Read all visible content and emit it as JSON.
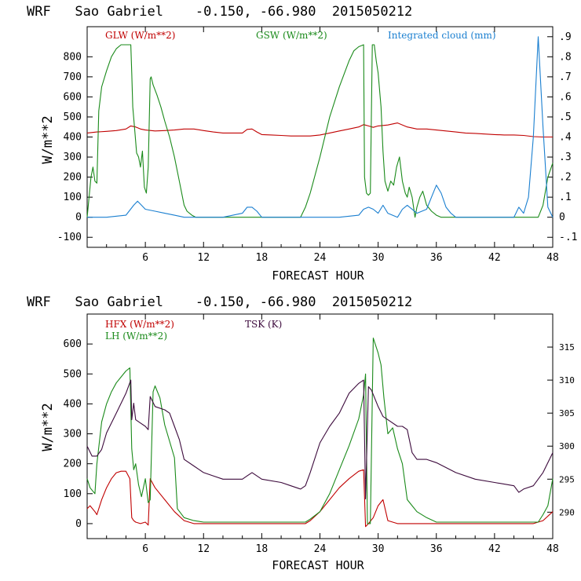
{
  "colors": {
    "red": "#c00000",
    "green": "#1a8a1a",
    "blue": "#1a7fd0",
    "purple": "#3c0a3c",
    "axis": "#000000"
  },
  "chart_data": [
    {
      "type": "line",
      "title": "WRF   Sao Gabriel    -0.150, -66.980  2015050212",
      "xlabel": "FORECAST HOUR",
      "ylabel": "W/m**2",
      "xlim": [
        0,
        48
      ],
      "ylim": [
        -150,
        950
      ],
      "x_ticks": [
        6,
        12,
        18,
        24,
        30,
        36,
        42,
        48
      ],
      "x_tick_labels": [
        "6",
        "12",
        "18",
        "24",
        "30",
        "36",
        "42",
        "48"
      ],
      "y_ticks": [
        -100,
        0,
        100,
        200,
        300,
        400,
        500,
        600,
        700,
        800
      ],
      "y_tick_labels": [
        "-100",
        "0",
        "100",
        "200",
        "300",
        "400",
        "500",
        "600",
        "700",
        "800"
      ],
      "y2lim": [
        -0.15,
        0.95
      ],
      "y2_ticks": [
        -0.1,
        0,
        0.1,
        0.2,
        0.3,
        0.4,
        0.5,
        0.6,
        0.7,
        0.8,
        0.9
      ],
      "y2_tick_labels": [
        "-.1",
        "0",
        ".1",
        ".2",
        ".3",
        ".4",
        ".5",
        ".6",
        ".7",
        ".8",
        ".9"
      ],
      "series": [
        {
          "name": "GLW (W/m**2)",
          "color": "red",
          "axis": "left",
          "x": [
            0,
            1,
            2,
            3,
            4,
            4.5,
            5,
            5.5,
            6,
            7,
            8,
            9,
            10,
            11,
            12,
            13,
            14,
            15,
            16,
            16.5,
            17,
            17.5,
            18,
            19,
            20,
            21,
            22,
            23,
            24,
            25,
            26,
            27,
            28,
            28.5,
            29,
            29.5,
            30,
            31,
            32,
            33,
            34,
            35,
            36,
            37,
            38,
            39,
            40,
            41,
            42,
            43,
            44,
            45,
            46,
            47,
            48
          ],
          "y": [
            420,
            425,
            428,
            432,
            440,
            455,
            450,
            440,
            435,
            430,
            432,
            435,
            440,
            440,
            432,
            425,
            420,
            420,
            420,
            438,
            440,
            425,
            412,
            410,
            408,
            405,
            405,
            405,
            410,
            420,
            430,
            440,
            450,
            462,
            455,
            448,
            455,
            460,
            470,
            450,
            440,
            440,
            435,
            430,
            425,
            420,
            418,
            415,
            412,
            410,
            410,
            408,
            402,
            400,
            400
          ]
        },
        {
          "name": "GSW (W/m**2)",
          "color": "green",
          "axis": "left",
          "x": [
            0,
            0.4,
            0.6,
            0.8,
            1,
            1.2,
            1.5,
            2,
            2.5,
            3,
            3.5,
            4,
            4.5,
            4.6,
            4.7,
            4.9,
            5.1,
            5.3,
            5.5,
            5.7,
            5.9,
            6.1,
            6.3,
            6.5,
            6.6,
            6.8,
            7.2,
            7.6,
            8,
            8.5,
            9,
            9.5,
            10,
            10.3,
            10.8,
            11.2,
            22,
            22.5,
            23,
            24,
            25,
            26,
            27,
            27.5,
            28,
            28.5,
            28.6,
            28.8,
            29,
            29.2,
            29.4,
            29.6,
            29.8,
            30,
            30.3,
            30.5,
            30.7,
            31,
            31.3,
            31.6,
            31.9,
            32.2,
            32.5,
            32.8,
            33,
            33.2,
            33.5,
            33.8,
            34,
            34.3,
            34.6,
            35,
            35.5,
            36,
            36.5,
            46,
            46.5,
            47,
            47.5,
            48
          ],
          "y": [
            0,
            200,
            250,
            180,
            170,
            530,
            650,
            730,
            800,
            840,
            860,
            860,
            860,
            720,
            550,
            440,
            320,
            300,
            250,
            330,
            150,
            120,
            250,
            690,
            700,
            660,
            610,
            550,
            480,
            400,
            300,
            180,
            60,
            30,
            10,
            0,
            0,
            50,
            120,
            300,
            500,
            650,
            780,
            830,
            850,
            860,
            200,
            120,
            110,
            120,
            860,
            860,
            780,
            720,
            550,
            330,
            180,
            130,
            180,
            160,
            250,
            300,
            180,
            120,
            100,
            150,
            100,
            0,
            50,
            100,
            130,
            60,
            30,
            10,
            0,
            0,
            0,
            60,
            200,
            270
          ]
        },
        {
          "name": "Integrated cloud (mm)",
          "color": "blue",
          "axis": "right",
          "x": [
            0,
            2,
            4,
            4.8,
            5.2,
            5.6,
            6,
            7,
            8,
            9,
            10,
            12,
            14,
            16,
            16.5,
            17,
            17.5,
            18,
            20,
            22,
            24,
            26,
            28,
            28.5,
            29,
            29.5,
            30,
            30.5,
            31,
            32,
            32.5,
            33,
            34,
            35,
            35.5,
            36,
            36.5,
            37,
            37.5,
            38,
            40,
            42,
            44,
            44.5,
            45,
            45.5,
            46,
            46.5,
            47,
            47.5,
            48
          ],
          "y": [
            0,
            0,
            0.01,
            0.06,
            0.08,
            0.06,
            0.04,
            0.03,
            0.02,
            0.01,
            0,
            0,
            0,
            0.02,
            0.05,
            0.05,
            0.03,
            0,
            0,
            0,
            0,
            0,
            0.01,
            0.04,
            0.05,
            0.04,
            0.02,
            0.06,
            0.02,
            0,
            0.04,
            0.06,
            0.02,
            0.04,
            0.1,
            0.16,
            0.12,
            0.05,
            0.02,
            0,
            0,
            0,
            0,
            0.05,
            0.02,
            0.1,
            0.4,
            0.9,
            0.45,
            0.05,
            0
          ]
        }
      ],
      "legend": [
        "GLW (W/m**2)",
        "GSW (W/m**2)",
        "Integrated cloud (mm)"
      ]
    },
    {
      "type": "line",
      "title": "WRF   Sao Gabriel    -0.150, -66.980  2015050212",
      "xlabel": "FORECAST HOUR",
      "ylabel": "W/m**2",
      "xlim": [
        0,
        48
      ],
      "ylim": [
        -50,
        700
      ],
      "x_ticks": [
        6,
        12,
        18,
        24,
        30,
        36,
        42,
        48
      ],
      "x_tick_labels": [
        "6",
        "12",
        "18",
        "24",
        "30",
        "36",
        "42",
        "48"
      ],
      "y_ticks": [
        0,
        100,
        200,
        300,
        400,
        500,
        600
      ],
      "y_tick_labels": [
        "0",
        "100",
        "200",
        "300",
        "400",
        "500",
        "600"
      ],
      "y2lim": [
        286,
        320
      ],
      "y2_ticks": [
        290,
        295,
        300,
        305,
        310,
        315
      ],
      "y2_tick_labels": [
        "290",
        "295",
        "300",
        "305",
        "310",
        "315"
      ],
      "series": [
        {
          "name": "HFX (W/m**2)",
          "color": "red",
          "axis": "left",
          "x": [
            0,
            0.3,
            0.8,
            1,
            1.5,
            2,
            2.5,
            3,
            3.5,
            4,
            4.4,
            4.6,
            4.8,
            5,
            5.5,
            6,
            6.3,
            6.5,
            7,
            8,
            9,
            10,
            11,
            12,
            16,
            18,
            20,
            22,
            22.5,
            23,
            24,
            25,
            26,
            27,
            28,
            28.5,
            28.7,
            29,
            29.5,
            30,
            30.5,
            31,
            32,
            33,
            34,
            35,
            36,
            40,
            44,
            46,
            47,
            48
          ],
          "y": [
            50,
            60,
            40,
            30,
            80,
            120,
            150,
            170,
            175,
            175,
            150,
            20,
            10,
            5,
            0,
            5,
            -5,
            150,
            120,
            80,
            40,
            10,
            0,
            0,
            0,
            0,
            0,
            0,
            0,
            10,
            40,
            80,
            120,
            150,
            175,
            180,
            -10,
            0,
            20,
            60,
            80,
            10,
            0,
            0,
            0,
            0,
            0,
            0,
            0,
            0,
            10,
            40
          ]
        },
        {
          "name": "LH (W/m**2)",
          "color": "green",
          "axis": "left",
          "x": [
            0,
            0.3,
            0.8,
            1,
            1.5,
            2,
            2.5,
            3,
            3.5,
            4,
            4.4,
            4.6,
            4.8,
            5,
            5.3,
            5.6,
            6,
            6.3,
            6.5,
            6.8,
            7,
            7.5,
            8,
            9,
            9.3,
            10,
            11,
            12,
            16,
            20,
            22,
            22.5,
            23,
            24,
            25,
            26,
            27,
            28,
            28.5,
            28.7,
            28.9,
            29.2,
            29.5,
            30,
            30.3,
            30.6,
            31,
            31.5,
            32,
            32.5,
            33,
            33.5,
            34,
            35,
            36,
            40,
            44,
            46,
            46.5,
            47,
            47.5,
            48
          ],
          "y": [
            150,
            120,
            100,
            200,
            340,
            400,
            440,
            470,
            490,
            510,
            520,
            250,
            180,
            200,
            130,
            90,
            150,
            70,
            80,
            440,
            460,
            420,
            330,
            220,
            50,
            20,
            10,
            5,
            5,
            5,
            5,
            5,
            15,
            40,
            100,
            180,
            260,
            350,
            430,
            500,
            0,
            0,
            620,
            570,
            530,
            420,
            300,
            320,
            250,
            200,
            80,
            60,
            40,
            20,
            5,
            5,
            5,
            5,
            5,
            30,
            60,
            150
          ]
        },
        {
          "name": "TSK (K)",
          "color": "purple",
          "axis": "right",
          "x": [
            0,
            0.5,
            1,
            1.5,
            2,
            3,
            4,
            4.5,
            4.6,
            4.8,
            5,
            5.5,
            6,
            6.3,
            6.5,
            7,
            8,
            8.5,
            9,
            9.5,
            10,
            11,
            12,
            13,
            14,
            15,
            16,
            16.5,
            17,
            18,
            20,
            21,
            22,
            22.5,
            23,
            24,
            25,
            26,
            27,
            28,
            28.5,
            28.7,
            29,
            29.3,
            30,
            30.5,
            31,
            32,
            32.5,
            33,
            33.5,
            34,
            35,
            36,
            38,
            40,
            42,
            44,
            44.5,
            45,
            46,
            47,
            48
          ],
          "y": [
            300,
            298.5,
            298.5,
            299.5,
            302,
            305,
            308,
            310,
            304,
            306.5,
            304,
            303.5,
            303,
            302.5,
            307.5,
            306,
            305.5,
            305,
            303,
            301,
            298,
            297,
            296,
            295.5,
            295,
            295,
            295,
            295.5,
            296,
            295,
            294.5,
            294,
            293.5,
            294,
            296,
            300.5,
            303,
            305,
            308,
            309.5,
            310,
            292,
            309,
            308.5,
            306,
            304.5,
            304,
            303,
            303,
            302.5,
            299,
            298,
            298,
            297.5,
            296,
            295,
            294.5,
            294,
            293,
            293.5,
            294,
            296,
            299
          ]
        }
      ],
      "legend": [
        "HFX (W/m**2)",
        "LH (W/m**2)",
        "TSK (K)"
      ]
    }
  ]
}
